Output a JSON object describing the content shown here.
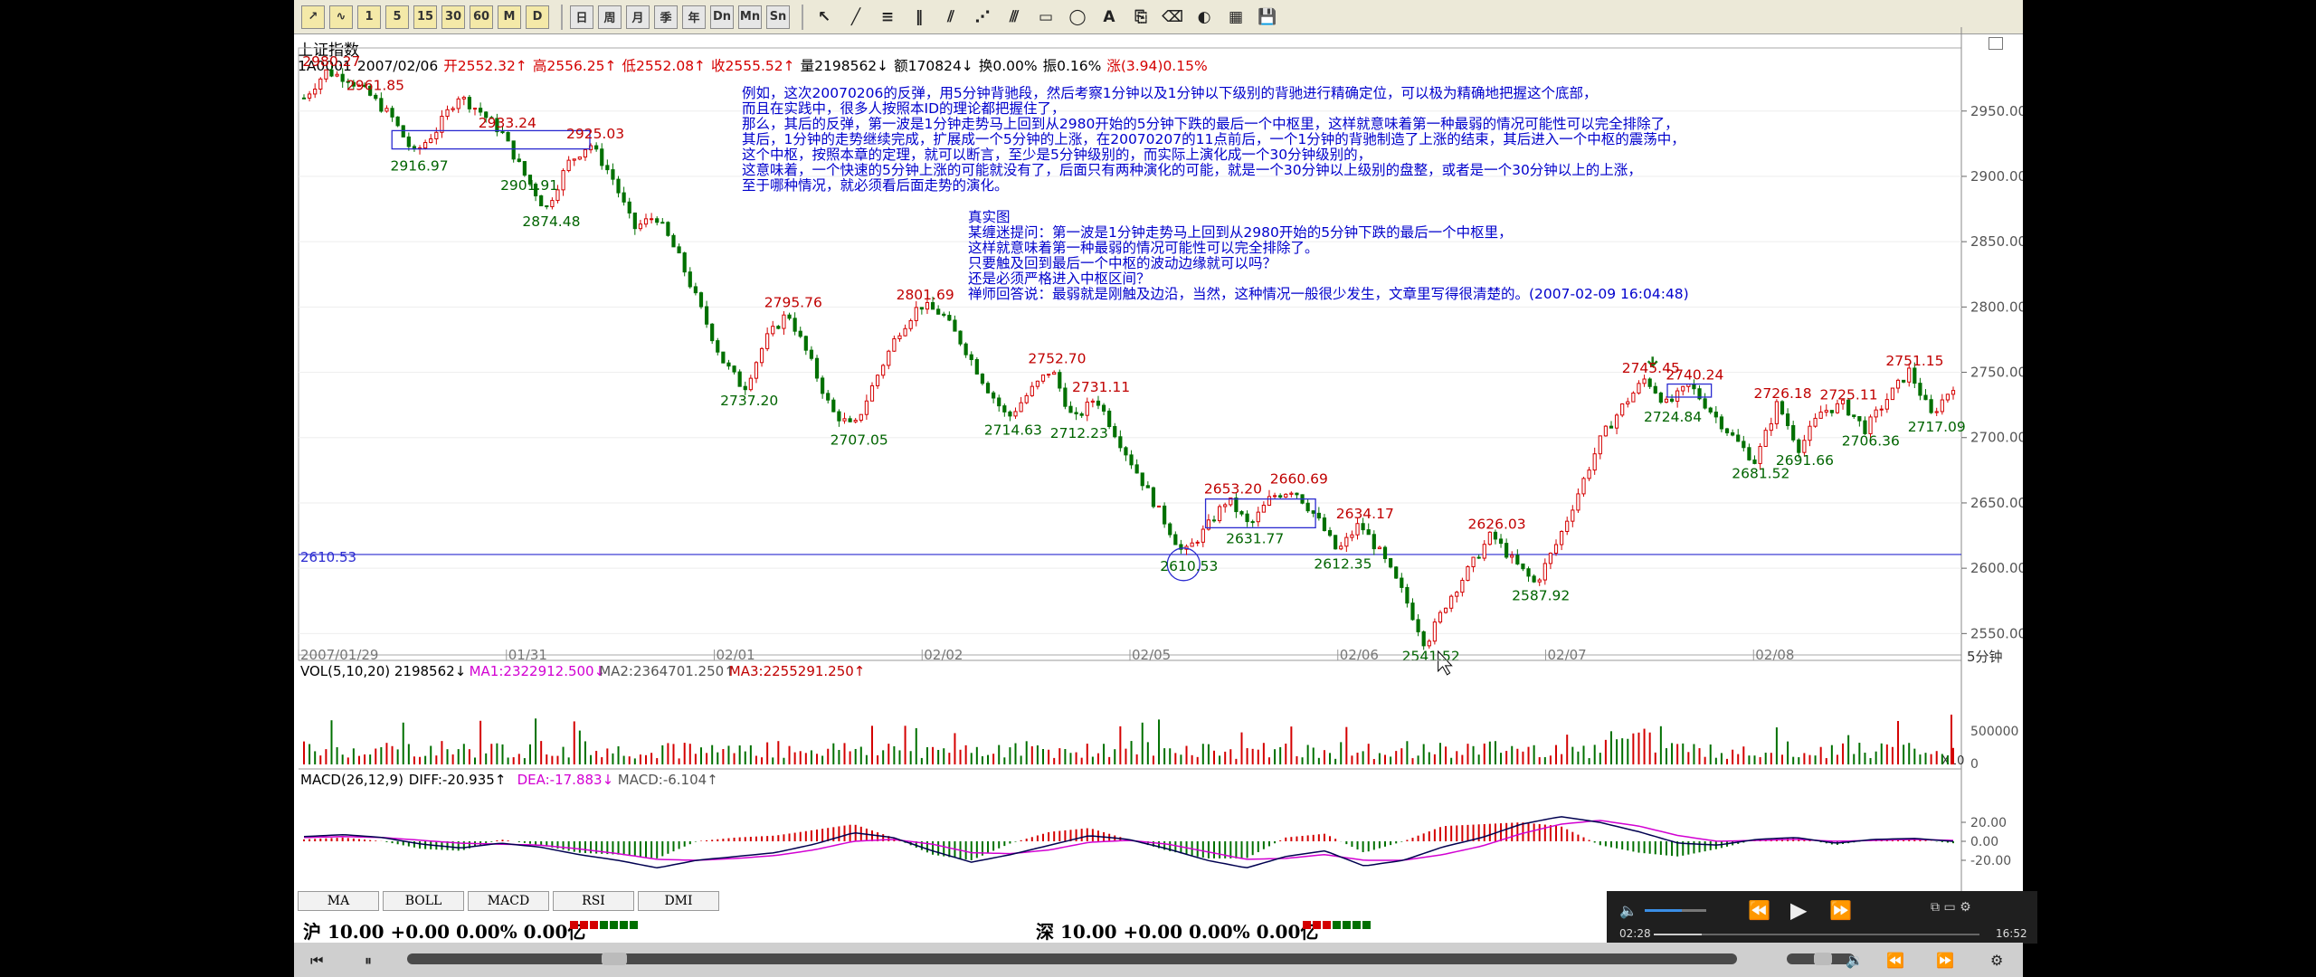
{
  "toolbar": {
    "analysis_buttons": [
      "↗",
      "∿",
      "1",
      "5",
      "15",
      "30",
      "60",
      "M",
      "D"
    ],
    "period_buttons": [
      "日",
      "周",
      "月",
      "季",
      "年",
      "Dn",
      "Mn",
      "Sn"
    ],
    "draw_icons": [
      "cursor-icon",
      "line-icon",
      "fib-icon",
      "vertical-lines-icon",
      "gann-fan-icon",
      "channel-icon",
      "parallel-icon",
      "rectangle-icon",
      "ellipse-icon",
      "text-icon",
      "copy-icon",
      "eraser-icon",
      "palette-icon",
      "color-grid-icon",
      "save-icon"
    ]
  },
  "header": {
    "title": "上证指数",
    "code": "1A0001",
    "date": "2007/02/06",
    "open": "开2552.32↑",
    "high": "高2556.25↑",
    "low": "低2552.08↑",
    "close": "收2555.52↑",
    "volume": "量2198562↓",
    "amount": "额170824↓",
    "change_pct": "换0.00%",
    "amplitude": "振0.16%",
    "rise": "涨(3.94)0.15%"
  },
  "chart_data": {
    "type": "candlestick",
    "period": "5分钟",
    "date_labels": [
      "2007/01/29",
      "01/31",
      "02/01",
      "02/02",
      "02/05",
      "02/06",
      "02/07",
      "02/08"
    ],
    "yticks": [
      2950.0,
      2900.0,
      2850.0,
      2800.0,
      2750.0,
      2700.0,
      2650.0,
      2600.0,
      2550.0
    ],
    "ylim": [
      2535,
      2990
    ],
    "reference_line": "2610.53",
    "close_path": [
      2960,
      2980.27,
      2975,
      2961.85,
      2945,
      2916.97,
      2935,
      2961.85,
      2950,
      2933.24,
      2901.91,
      2874.48,
      2910,
      2925.03,
      2900,
      2860,
      2870,
      2840,
      2800,
      2760,
      2737.2,
      2775,
      2795.76,
      2760,
      2720,
      2707.05,
      2745,
      2780,
      2801.69,
      2795,
      2770,
      2740,
      2714.63,
      2735,
      2752.7,
      2712.23,
      2731.11,
      2700,
      2670,
      2640,
      2610.53,
      2630,
      2653.2,
      2631.77,
      2655,
      2660.69,
      2640,
      2612.35,
      2634.17,
      2610,
      2580,
      2541.52,
      2575,
      2600,
      2626.03,
      2605,
      2587.92,
      2620,
      2660,
      2700,
      2725,
      2745.45,
      2724.84,
      2740.24,
      2720,
      2700,
      2681.52,
      2726.18,
      2691.66,
      2720,
      2725.11,
      2706.36,
      2730,
      2751.15,
      2717.09,
      2740
    ],
    "annotations": [
      {
        "label": "2980.27",
        "idx": 1,
        "kind": "high"
      },
      {
        "label": "2961.85",
        "idx": 3,
        "kind": "high"
      },
      {
        "label": "2916.97",
        "idx": 5,
        "kind": "low"
      },
      {
        "label": "2933.24",
        "idx": 9,
        "kind": "high"
      },
      {
        "label": "2901.91",
        "idx": 10,
        "kind": "low"
      },
      {
        "label": "2874.48",
        "idx": 11,
        "kind": "low"
      },
      {
        "label": "2925.03",
        "idx": 13,
        "kind": "high"
      },
      {
        "label": "2795.76",
        "idx": 22,
        "kind": "high"
      },
      {
        "label": "2737.20",
        "idx": 20,
        "kind": "low"
      },
      {
        "label": "2707.05",
        "idx": 25,
        "kind": "low"
      },
      {
        "label": "2801.69",
        "idx": 28,
        "kind": "high"
      },
      {
        "label": "2752.70",
        "idx": 34,
        "kind": "high"
      },
      {
        "label": "2714.63",
        "idx": 32,
        "kind": "low"
      },
      {
        "label": "2712.23",
        "idx": 35,
        "kind": "low"
      },
      {
        "label": "2731.11",
        "idx": 36,
        "kind": "high"
      },
      {
        "label": "2653.20",
        "idx": 42,
        "kind": "high"
      },
      {
        "label": "2660.69",
        "idx": 45,
        "kind": "high"
      },
      {
        "label": "2631.77",
        "idx": 43,
        "kind": "low"
      },
      {
        "label": "2610.53",
        "idx": 40,
        "kind": "low"
      },
      {
        "label": "2634.17",
        "idx": 48,
        "kind": "high"
      },
      {
        "label": "2612.35",
        "idx": 47,
        "kind": "low"
      },
      {
        "label": "2541.52",
        "idx": 51,
        "kind": "low"
      },
      {
        "label": "2626.03",
        "idx": 54,
        "kind": "high"
      },
      {
        "label": "2587.92",
        "idx": 56,
        "kind": "low"
      },
      {
        "label": "2745.45",
        "idx": 61,
        "kind": "high"
      },
      {
        "label": "2740.24",
        "idx": 63,
        "kind": "high"
      },
      {
        "label": "2724.84",
        "idx": 62,
        "kind": "low"
      },
      {
        "label": "2681.52",
        "idx": 66,
        "kind": "low"
      },
      {
        "label": "2726.18",
        "idx": 67,
        "kind": "high"
      },
      {
        "label": "2691.66",
        "idx": 68,
        "kind": "low"
      },
      {
        "label": "2725.11",
        "idx": 70,
        "kind": "high"
      },
      {
        "label": "2706.36",
        "idx": 71,
        "kind": "low"
      },
      {
        "label": "2751.15",
        "idx": 73,
        "kind": "high"
      },
      {
        "label": "2717.09",
        "idx": 74,
        "kind": "low"
      }
    ],
    "pivot_boxes": [
      {
        "from": 2921,
        "to": 2935,
        "start_idx": 4,
        "end_idx": 13
      },
      {
        "from": 2631,
        "to": 2653,
        "start_idx": 41,
        "end_idx": 46
      },
      {
        "from": 2731,
        "to": 2741,
        "start_idx": 62,
        "end_idx": 64
      }
    ],
    "volume": {
      "label": "VOL(5,10,20)",
      "value": "2198562",
      "ma1": "MA1:2322912.500",
      "ma2": "MA2:2364701.250",
      "ma3": "MA3:2255291.250",
      "yticks": [
        "500000",
        "0"
      ],
      "scale": "X10"
    },
    "macd": {
      "label": "MACD(26,12,9)",
      "diff": "DIFF:-20.935",
      "dea": "DEA:-17.883",
      "macd": "MACD:-6.104",
      "yticks": [
        "20.00",
        "0.00",
        "-20.00"
      ],
      "diff_path": [
        5,
        7,
        4,
        -3,
        -7,
        -2,
        -6,
        -14,
        -20,
        -28,
        -20,
        -16,
        -12,
        -3,
        9,
        4,
        -10,
        -22,
        -14,
        -4,
        6,
        2,
        -8,
        -20,
        -28,
        -16,
        -10,
        -26,
        -20,
        -6,
        4,
        18,
        26,
        20,
        10,
        -2,
        -4,
        2,
        4,
        -2,
        2,
        3,
        0
      ],
      "dea_path": [
        4,
        5,
        4,
        1,
        -2,
        -3,
        -4,
        -8,
        -13,
        -19,
        -20,
        -18,
        -15,
        -9,
        0,
        2,
        -3,
        -12,
        -13,
        -9,
        -1,
        1,
        -3,
        -11,
        -19,
        -18,
        -14,
        -20,
        -20,
        -14,
        -5,
        8,
        18,
        22,
        16,
        6,
        0,
        1,
        2,
        0,
        1,
        2,
        1
      ]
    },
    "axis_label_period": "5分钟"
  },
  "notes": [
    "例如，这次20070206的反弹，用5分钟背驰段，然后考察1分钟以及1分钟以下级别的背驰进行精确定位，可以极为精确地把握这个底部，",
    "而且在实践中，很多人按照本ID的理论都把握住了，",
    "那么，其后的反弹，第一波是1分钟走势马上回到从2980开始的5分钟下跌的最后一个中枢里，这样就意味着第一种最弱的情况可能性可以完全排除了，",
    "其后，1分钟的走势继续完成，扩展成一个5分钟的上涨，在20070207的11点前后，一个1分钟的背驰制造了上涨的结束，其后进入一个中枢的震荡中，",
    "这个中枢，按照本章的定理，就可以断言，至少是5分钟级别的，而实际上演化成一个30分钟级别的，",
    "这意味着，一个快速的5分钟上涨的可能就没有了，后面只有两种演化的可能，就是一个30分钟以上级别的盘整，或者是一个30分钟以上的上涨，",
    "至于哪种情况，就必须看后面走势的演化。"
  ],
  "qa": [
    "真实图",
    "某缠迷提问：第一波是1分钟走势马上回到从2980开始的5分钟下跌的最后一个中枢里，",
    "这样就意味着第一种最弱的情况可能性可以完全排除了。",
    "只要触及回到最后一个中枢的波动边缘就可以吗？",
    "还是必须严格进入中枢区间？",
    "禅师回答说：最弱就是刚触及边沿，当然，这种情况一般很少发生，文章里写得很清楚的。(2007-02-09 16:04:48)"
  ],
  "indicator_tabs": [
    "MA",
    "BOLL",
    "MACD",
    "RSI",
    "DMI"
  ],
  "market": {
    "sh_label": "沪 10.00 +0.00 0.00% 0.00亿",
    "sz_label": "深 10.00 +0.00 0.00% 0.00亿"
  },
  "player": {
    "current_time": "02:28",
    "total_time": "16:52",
    "progress": 0.146,
    "volume": 0.6
  },
  "colors": {
    "up": "#d40000",
    "down": "#007000",
    "note": "#0000cc",
    "ma_magenta": "#d200d2"
  }
}
